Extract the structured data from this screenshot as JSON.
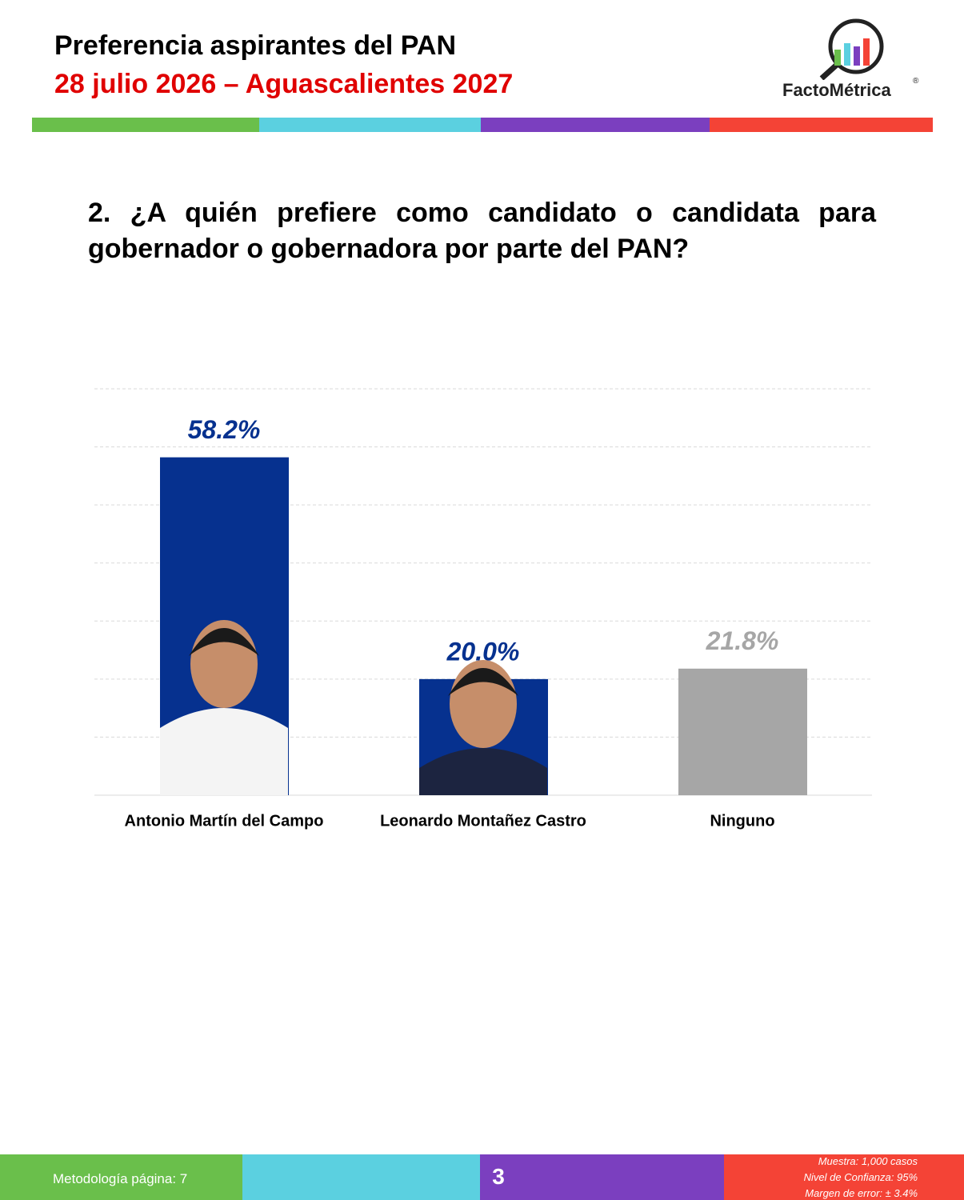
{
  "header": {
    "title": "Preferencia aspirantes del PAN",
    "subtitle": "28 julio 2026 – Aguascalientes 2027",
    "logo": "FactoMétrica",
    "registered": "®"
  },
  "question": "2. ¿A quién prefiere como candidato o candidata para gobernador o gobernadora por parte del PAN?",
  "chart_data": {
    "type": "bar",
    "categories": [
      "Antonio Martín del Campo",
      "Leonardo Montañez Castro",
      "Ninguno"
    ],
    "values": [
      58.2,
      20.0,
      21.8
    ],
    "value_labels": [
      "58.2%",
      "20.0%",
      "21.8%"
    ],
    "colors": [
      "#06318f",
      "#06318f",
      "#a6a6a6"
    ],
    "ylim": [
      0,
      70
    ],
    "yticks": [
      0,
      10,
      20,
      30,
      40,
      50,
      60,
      70
    ],
    "grid": true
  },
  "footer": {
    "methodology": "Metodología página: 7",
    "page": "3",
    "notes": [
      "Muestra:  1,000 casos",
      "Nivel de Confianza: 95%",
      "Margen de error: ± 3.4%"
    ]
  }
}
